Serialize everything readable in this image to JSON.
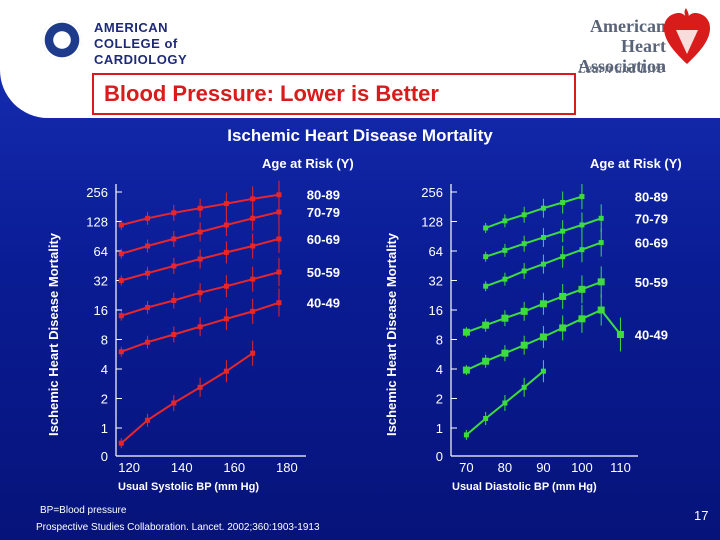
{
  "slide": {
    "acc_logo_lines": [
      "AMERICAN",
      "COLLEGE of",
      "CARDIOLOGY"
    ],
    "aha_logo_lines": [
      "American Heart",
      "Association"
    ],
    "aha_tagline": "Learn and Live",
    "title": "Blood Pressure: Lower is Better",
    "subtitle": "Ischemic Heart Disease Mortality",
    "footnote_abbr": "BP=Blood pressure",
    "citation": "Prospective Studies Collaboration. Lancet. 2002;360:1903-1913",
    "page_number": "17",
    "colors": {
      "background": "#0a1c94",
      "title_red": "#d81b1b",
      "left_series": "#e8262a",
      "right_series": "#3ddc3d",
      "text": "#ffffff"
    }
  },
  "chart_data": [
    {
      "type": "line",
      "title": "Ischemic Heart Disease Mortality",
      "xlabel": "Usual Systolic BP (mm Hg)",
      "ylabel": "Ischemic Heart Disease Mortality",
      "legend_title": "Age at Risk (Y)",
      "y_scale": "log2",
      "y_tick_labels": [
        "256",
        "128",
        "64",
        "32",
        "16",
        "8",
        "4",
        "2",
        "1",
        "0"
      ],
      "x_tick_labels": [
        "120",
        "140",
        "160",
        "180"
      ],
      "xlim": [
        115,
        185
      ],
      "series": [
        {
          "name": "80-89",
          "x": [
            117,
            127,
            137,
            147,
            157,
            167,
            177
          ],
          "y": [
            118,
            138,
            157,
            175,
            195,
            218,
            240
          ]
        },
        {
          "name": "70-79",
          "x": [
            117,
            127,
            137,
            147,
            157,
            167,
            177
          ],
          "y": [
            60,
            72,
            85,
            100,
            118,
            138,
            160
          ]
        },
        {
          "name": "60-69",
          "x": [
            117,
            127,
            137,
            147,
            157,
            167,
            177
          ],
          "y": [
            32,
            38,
            45,
            53,
            62,
            72,
            85
          ]
        },
        {
          "name": "50-59",
          "x": [
            117,
            127,
            137,
            147,
            157,
            167,
            177
          ],
          "y": [
            14,
            17,
            20,
            24,
            28,
            33,
            39
          ]
        },
        {
          "name": "40-49",
          "x": [
            117,
            127,
            137,
            147,
            157,
            167,
            177
          ],
          "y": [
            6.0,
            7.5,
            9.0,
            10.8,
            13.0,
            15.5,
            19.0
          ]
        },
        {
          "name": "",
          "x": [
            117,
            127,
            137,
            147,
            157,
            167
          ],
          "y": [
            0.7,
            1.2,
            1.8,
            2.6,
            3.8,
            5.8
          ]
        }
      ]
    },
    {
      "type": "line",
      "xlabel": "Usual Diastolic BP (mm Hg)",
      "ylabel": "Ischemic Heart Disease Mortality",
      "legend_title": "Age at Risk (Y)",
      "y_scale": "log2",
      "y_tick_labels": [
        "256",
        "128",
        "64",
        "32",
        "16",
        "8",
        "4",
        "2",
        "1",
        "0"
      ],
      "x_tick_labels": [
        "70",
        "80",
        "90",
        "100",
        "110"
      ],
      "xlim": [
        66,
        113
      ],
      "series": [
        {
          "name": "80-89",
          "x": [
            75,
            80,
            85,
            90,
            95,
            100
          ],
          "y": [
            110,
            130,
            150,
            175,
            200,
            230
          ]
        },
        {
          "name": "70-79",
          "x": [
            75,
            80,
            85,
            90,
            95,
            100,
            105
          ],
          "y": [
            56,
            65,
            76,
            88,
            102,
            118,
            138
          ]
        },
        {
          "name": "60-69",
          "x": [
            75,
            80,
            85,
            90,
            95,
            100,
            105
          ],
          "y": [
            28,
            33,
            40,
            47,
            56,
            66,
            78
          ]
        },
        {
          "name": "50-59",
          "x": [
            70,
            75,
            80,
            85,
            90,
            95,
            100,
            105
          ],
          "y": [
            9.5,
            11.2,
            13.2,
            15.5,
            18.5,
            22,
            26,
            31
          ]
        },
        {
          "name": "40-49",
          "x": [
            70,
            75,
            80,
            85,
            90,
            95,
            100,
            105,
            110
          ],
          "y": [
            3.9,
            4.8,
            5.8,
            7.0,
            8.5,
            10.5,
            13,
            16,
            9
          ]
        },
        {
          "name": "",
          "x": [
            70,
            75,
            80,
            85,
            90
          ],
          "y": [
            0.85,
            1.25,
            1.8,
            2.6,
            3.8
          ]
        }
      ]
    }
  ]
}
